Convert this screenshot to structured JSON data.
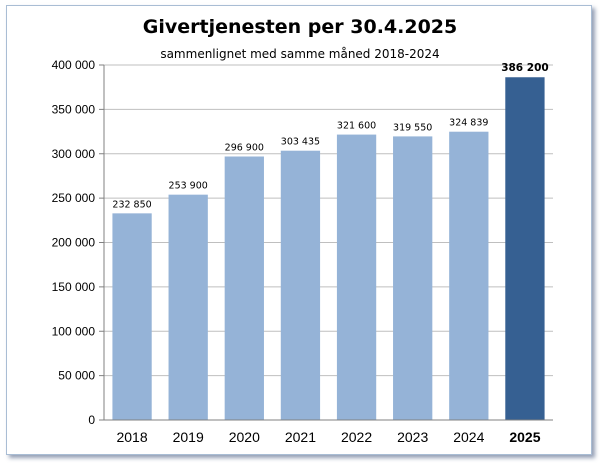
{
  "chart_data": {
    "type": "bar",
    "title": "Givertjenesten per 30.4.2025",
    "subtitle": "sammenlignet med samme måned 2018-2024",
    "xlabel": "",
    "ylabel": "",
    "ylim": [
      0,
      400000
    ],
    "ytick_step": 50000,
    "yticks": [
      "0",
      "50 000",
      "100 000",
      "150 000",
      "200 000",
      "250 000",
      "300 000",
      "350 000",
      "400 000"
    ],
    "grid": true,
    "legend": "none",
    "categories": [
      "2018",
      "2019",
      "2020",
      "2021",
      "2022",
      "2023",
      "2024",
      "2025"
    ],
    "values": [
      232850,
      253900,
      296900,
      303435,
      321600,
      319550,
      324839,
      386200
    ],
    "data_labels": [
      "232 850",
      "253 900",
      "296 900",
      "303 435",
      "321 600",
      "319 550",
      "324 839",
      "386 200"
    ],
    "highlight_index": 7,
    "colors": {
      "bar": "#95b3d7",
      "highlight": "#366092",
      "grid": "#bfbfbf",
      "axis": "#808080"
    }
  }
}
